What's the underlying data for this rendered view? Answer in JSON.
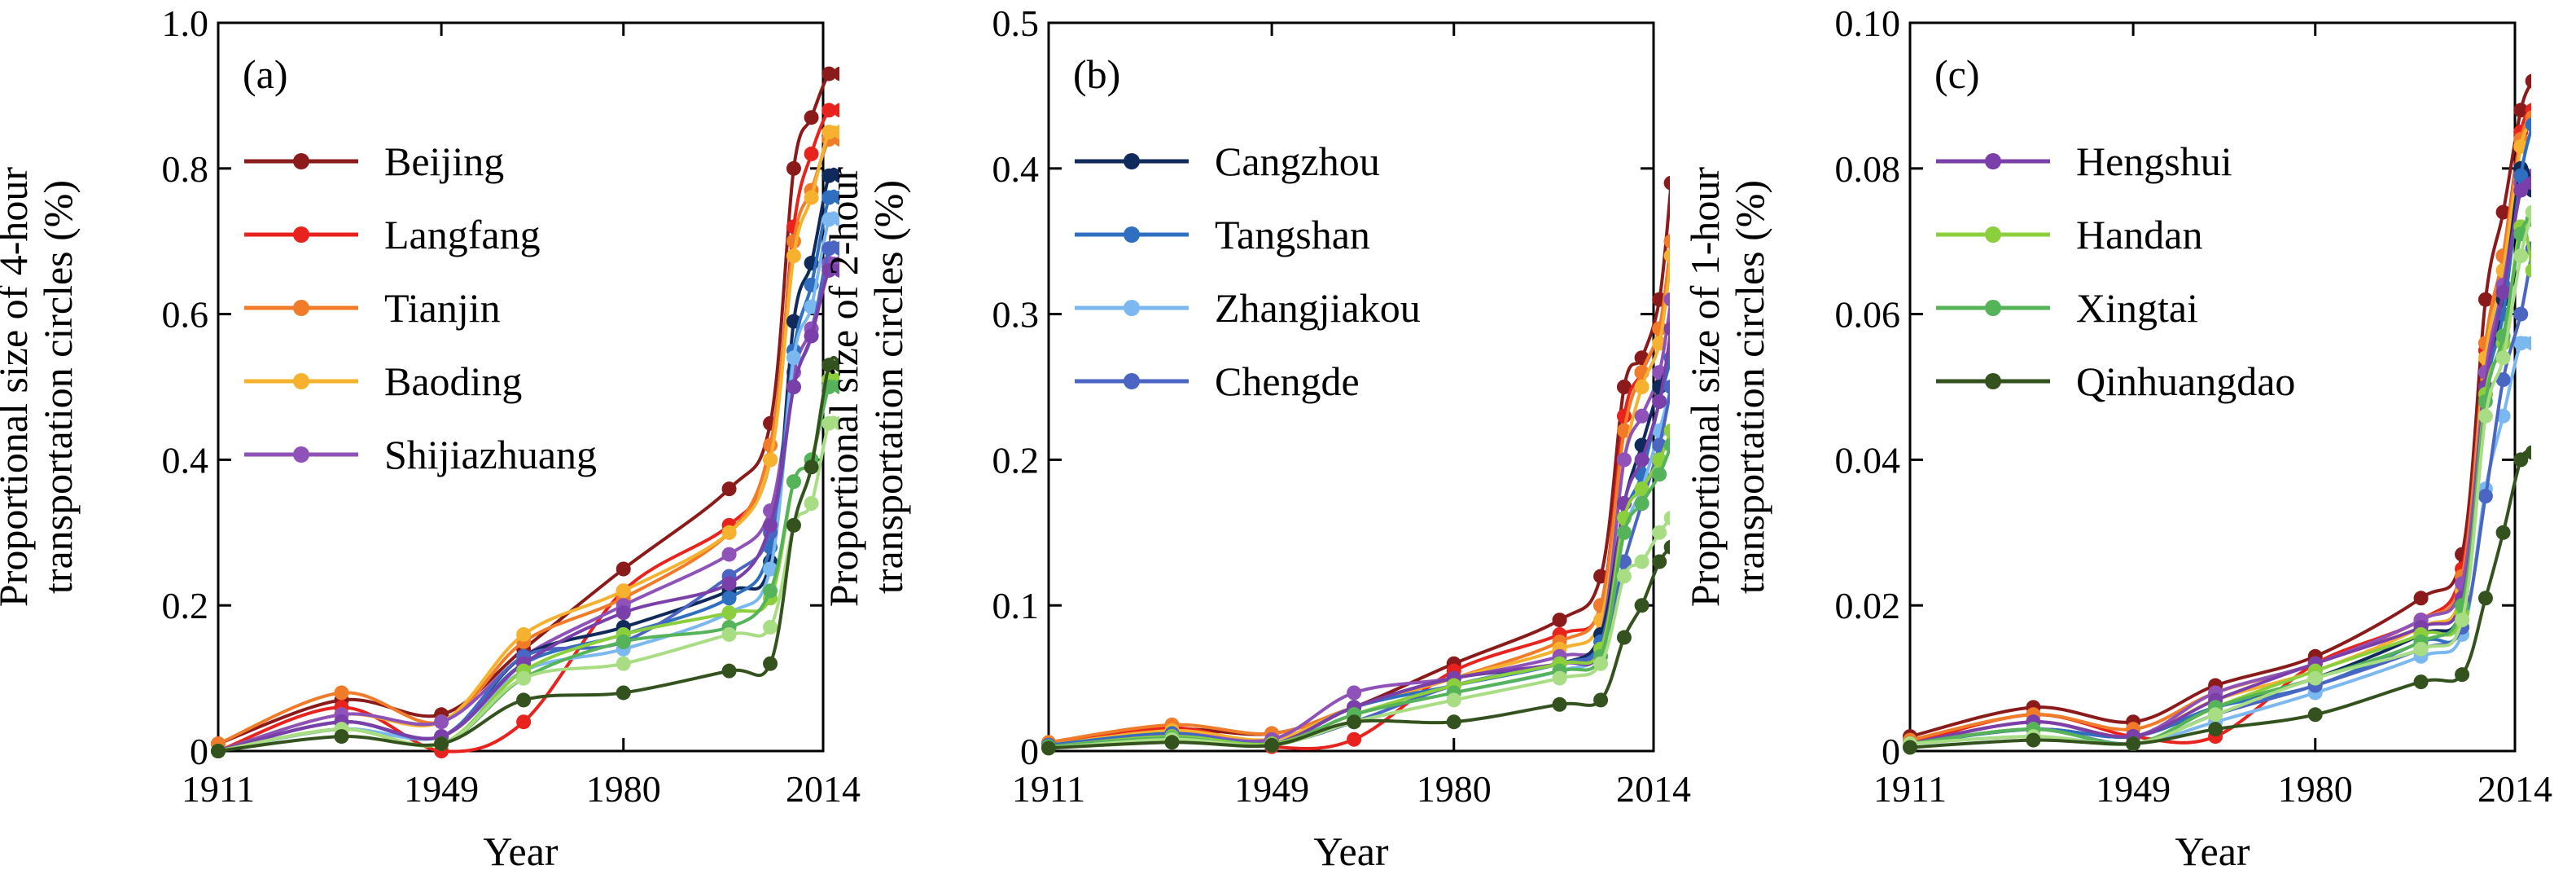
{
  "chart_data": [
    {
      "type": "line",
      "panel_label": "(a)",
      "xlabel": "Year",
      "ylabel_lines": [
        "Proportional size of 4-hour",
        "transportation circles (%)"
      ],
      "xticks": [
        1911,
        1949,
        1980,
        2014
      ],
      "ylim": [
        0,
        1.0
      ],
      "yticks": [
        0,
        0.2,
        0.4,
        0.6,
        0.8,
        1.0
      ],
      "ytick_labels": [
        "0",
        "0.2",
        "0.4",
        "0.6",
        "0.8",
        "1.0"
      ],
      "x": [
        1911,
        1932,
        1949,
        1963,
        1980,
        1998,
        2005,
        2009,
        2012,
        2015,
        2017
      ],
      "legend": [
        "Beijing",
        "Langfang",
        "Tianjin",
        "Baoding",
        "Shijiazhuang"
      ],
      "series": [
        {
          "name": "Beijing",
          "color": "#8b1a1a",
          "values": [
            0.01,
            0.07,
            0.05,
            0.14,
            0.25,
            0.36,
            0.45,
            0.8,
            0.87,
            0.93,
            0.93
          ]
        },
        {
          "name": "Langfang",
          "color": "#e8231d",
          "values": [
            0.0,
            0.06,
            0.0,
            0.04,
            0.22,
            0.31,
            0.4,
            0.72,
            0.82,
            0.88,
            0.88
          ]
        },
        {
          "name": "Tianjin",
          "color": "#f07c2a",
          "values": [
            0.01,
            0.08,
            0.04,
            0.15,
            0.21,
            0.3,
            0.42,
            0.7,
            0.77,
            0.84,
            0.84
          ]
        },
        {
          "name": "Baoding",
          "color": "#f6b22e",
          "values": [
            0.0,
            0.05,
            0.04,
            0.16,
            0.22,
            0.3,
            0.4,
            0.68,
            0.76,
            0.85,
            0.85
          ]
        },
        {
          "name": "Shijiazhuang",
          "color": "#8e52b8",
          "values": [
            0.0,
            0.05,
            0.04,
            0.13,
            0.2,
            0.27,
            0.33,
            0.52,
            0.58,
            0.67,
            0.67
          ]
        },
        {
          "name": "",
          "color": "#102a5c",
          "values": [
            0.0,
            0.04,
            0.02,
            0.13,
            0.17,
            0.22,
            0.26,
            0.59,
            0.67,
            0.79,
            0.79
          ]
        },
        {
          "name": "",
          "color": "#2f6fc0",
          "values": [
            0.0,
            0.04,
            0.02,
            0.12,
            0.16,
            0.21,
            0.28,
            0.55,
            0.64,
            0.76,
            0.76
          ]
        },
        {
          "name": "",
          "color": "#7ab8ef",
          "values": [
            0.0,
            0.03,
            0.02,
            0.11,
            0.14,
            0.19,
            0.25,
            0.54,
            0.61,
            0.73,
            0.73
          ]
        },
        {
          "name": "",
          "color": "#4a66c2",
          "values": [
            0.0,
            0.04,
            0.02,
            0.13,
            0.15,
            0.24,
            0.3,
            0.5,
            0.57,
            0.69,
            0.69
          ]
        },
        {
          "name": "",
          "color": "#7a3fa8",
          "values": [
            0.0,
            0.04,
            0.02,
            0.12,
            0.19,
            0.23,
            0.31,
            0.5,
            0.57,
            0.66,
            0.66
          ]
        },
        {
          "name": "",
          "color": "#8ccf3c",
          "values": [
            0.0,
            0.03,
            0.01,
            0.11,
            0.16,
            0.19,
            0.21,
            0.37,
            0.4,
            0.51,
            0.51
          ]
        },
        {
          "name": "",
          "color": "#55b35a",
          "values": [
            0.0,
            0.03,
            0.01,
            0.1,
            0.15,
            0.17,
            0.22,
            0.37,
            0.4,
            0.5,
            0.5
          ]
        },
        {
          "name": "",
          "color": "#a9dd84",
          "values": [
            0.0,
            0.03,
            0.01,
            0.1,
            0.12,
            0.16,
            0.17,
            0.31,
            0.34,
            0.45,
            0.45
          ]
        },
        {
          "name": "",
          "color": "#33521e",
          "values": [
            0.0,
            0.02,
            0.01,
            0.07,
            0.08,
            0.11,
            0.12,
            0.31,
            0.39,
            0.53,
            0.53
          ]
        }
      ]
    },
    {
      "type": "line",
      "panel_label": "(b)",
      "xlabel": "Year",
      "ylabel_lines": [
        "Proportional size of 2-hour",
        "transportation circles (%)"
      ],
      "xticks": [
        1911,
        1949,
        1980,
        2014
      ],
      "ylim": [
        0,
        0.5
      ],
      "yticks": [
        0,
        0.1,
        0.2,
        0.3,
        0.4,
        0.5
      ],
      "ytick_labels": [
        "0",
        "0.1",
        "0.2",
        "0.3",
        "0.4",
        "0.5"
      ],
      "x": [
        1911,
        1932,
        1949,
        1963,
        1980,
        1998,
        2005,
        2009,
        2012,
        2015,
        2017
      ],
      "legend": [
        "Cangzhou",
        "Tangshan",
        "Zhangjiakou",
        "Chengde"
      ],
      "series": [
        {
          "name": "",
          "color": "#8b1a1a",
          "values": [
            0.005,
            0.015,
            0.012,
            0.03,
            0.06,
            0.09,
            0.12,
            0.25,
            0.27,
            0.31,
            0.39
          ]
        },
        {
          "name": "",
          "color": "#e8231d",
          "values": [
            0.004,
            0.016,
            0.003,
            0.008,
            0.055,
            0.08,
            0.1,
            0.23,
            0.26,
            0.29,
            0.35
          ]
        },
        {
          "name": "",
          "color": "#f07c2a",
          "values": [
            0.006,
            0.018,
            0.012,
            0.03,
            0.05,
            0.075,
            0.1,
            0.22,
            0.26,
            0.29,
            0.35
          ]
        },
        {
          "name": "",
          "color": "#f6b22e",
          "values": [
            0.004,
            0.014,
            0.008,
            0.03,
            0.05,
            0.07,
            0.09,
            0.2,
            0.25,
            0.28,
            0.34
          ]
        },
        {
          "name": "",
          "color": "#8e52b8",
          "values": [
            0.004,
            0.012,
            0.008,
            0.04,
            0.05,
            0.065,
            0.08,
            0.2,
            0.23,
            0.26,
            0.31
          ]
        },
        {
          "name": "Cangzhou",
          "color": "#102a5c",
          "values": [
            0.004,
            0.01,
            0.005,
            0.03,
            0.05,
            0.06,
            0.08,
            0.17,
            0.21,
            0.25,
            0.27
          ]
        },
        {
          "name": "Tangshan",
          "color": "#2f6fc0",
          "values": [
            0.004,
            0.012,
            0.005,
            0.03,
            0.045,
            0.06,
            0.075,
            0.16,
            0.19,
            0.24,
            0.27
          ]
        },
        {
          "name": "Zhangjiakou",
          "color": "#7ab8ef",
          "values": [
            0.003,
            0.01,
            0.004,
            0.025,
            0.04,
            0.055,
            0.07,
            0.15,
            0.18,
            0.22,
            0.25
          ]
        },
        {
          "name": "Chengde",
          "color": "#4a66c2",
          "values": [
            0.003,
            0.011,
            0.005,
            0.02,
            0.045,
            0.06,
            0.07,
            0.13,
            0.17,
            0.21,
            0.25
          ]
        },
        {
          "name": "",
          "color": "#7a3fa8",
          "values": [
            0.003,
            0.01,
            0.005,
            0.03,
            0.05,
            0.06,
            0.07,
            0.17,
            0.2,
            0.24,
            0.29
          ]
        },
        {
          "name": "",
          "color": "#8ccf3c",
          "values": [
            0.003,
            0.01,
            0.005,
            0.025,
            0.045,
            0.06,
            0.07,
            0.16,
            0.18,
            0.2,
            0.22
          ]
        },
        {
          "name": "",
          "color": "#55b35a",
          "values": [
            0.003,
            0.009,
            0.004,
            0.025,
            0.04,
            0.055,
            0.065,
            0.15,
            0.17,
            0.19,
            0.21
          ]
        },
        {
          "name": "",
          "color": "#a9dd84",
          "values": [
            0.002,
            0.008,
            0.004,
            0.02,
            0.035,
            0.05,
            0.06,
            0.12,
            0.13,
            0.15,
            0.16
          ]
        },
        {
          "name": "",
          "color": "#33521e",
          "values": [
            0.002,
            0.006,
            0.004,
            0.02,
            0.02,
            0.032,
            0.035,
            0.078,
            0.1,
            0.13,
            0.14
          ]
        }
      ]
    },
    {
      "type": "line",
      "panel_label": "(c)",
      "xlabel": "Year",
      "ylabel_lines": [
        "Proportional size of 1-hour",
        "transportation circles (%)"
      ],
      "xticks": [
        1911,
        1949,
        1980,
        2014
      ],
      "ylim": [
        0,
        0.1
      ],
      "yticks": [
        0,
        0.02,
        0.04,
        0.06,
        0.08,
        0.1
      ],
      "ytick_labels": [
        "0",
        "0.02",
        "0.04",
        "0.06",
        "0.08",
        "0.10"
      ],
      "x": [
        1911,
        1932,
        1949,
        1963,
        1980,
        1998,
        2005,
        2009,
        2012,
        2015,
        2017
      ],
      "legend": [
        "Hengshui",
        "Handan",
        "Xingtai",
        "Qinhuangdao"
      ],
      "series": [
        {
          "name": "",
          "color": "#8b1a1a",
          "values": [
            0.002,
            0.006,
            0.004,
            0.009,
            0.013,
            0.021,
            0.027,
            0.062,
            0.074,
            0.088,
            0.092
          ]
        },
        {
          "name": "",
          "color": "#e8231d",
          "values": [
            0.001,
            0.005,
            0.002,
            0.002,
            0.012,
            0.018,
            0.025,
            0.055,
            0.068,
            0.085,
            0.088
          ]
        },
        {
          "name": "",
          "color": "#f07c2a",
          "values": [
            0.0015,
            0.005,
            0.003,
            0.008,
            0.012,
            0.018,
            0.024,
            0.056,
            0.068,
            0.084,
            0.087
          ]
        },
        {
          "name": "",
          "color": "#f6b22e",
          "values": [
            0.001,
            0.004,
            0.002,
            0.007,
            0.011,
            0.017,
            0.022,
            0.054,
            0.066,
            0.083,
            0.086
          ]
        },
        {
          "name": "",
          "color": "#8e52b8",
          "values": [
            0.001,
            0.004,
            0.002,
            0.008,
            0.012,
            0.018,
            0.023,
            0.052,
            0.064,
            0.078,
            0.079
          ]
        },
        {
          "name": "",
          "color": "#102a5c",
          "values": [
            0.001,
            0.003,
            0.002,
            0.006,
            0.01,
            0.016,
            0.02,
            0.05,
            0.062,
            0.08,
            0.077
          ]
        },
        {
          "name": "",
          "color": "#2f6fc0",
          "values": [
            0.001,
            0.003,
            0.002,
            0.006,
            0.009,
            0.015,
            0.018,
            0.049,
            0.06,
            0.079,
            0.086
          ]
        },
        {
          "name": "",
          "color": "#7ab8ef",
          "values": [
            0.001,
            0.002,
            0.001,
            0.004,
            0.008,
            0.013,
            0.016,
            0.036,
            0.046,
            0.056,
            0.056
          ]
        },
        {
          "name": "",
          "color": "#4a66c2",
          "values": [
            0.001,
            0.003,
            0.001,
            0.005,
            0.009,
            0.014,
            0.017,
            0.035,
            0.051,
            0.06,
            0.069
          ]
        },
        {
          "name": "Hengshui",
          "color": "#7a3fa8",
          "values": [
            0.001,
            0.004,
            0.002,
            0.007,
            0.012,
            0.017,
            0.021,
            0.05,
            0.063,
            0.077,
            0.078
          ]
        },
        {
          "name": "Handan",
          "color": "#8ccf3c",
          "values": [
            0.001,
            0.003,
            0.001,
            0.006,
            0.011,
            0.016,
            0.019,
            0.049,
            0.056,
            0.072,
            0.066
          ]
        },
        {
          "name": "Xingtai",
          "color": "#55b35a",
          "values": [
            0.001,
            0.003,
            0.001,
            0.006,
            0.01,
            0.015,
            0.02,
            0.048,
            0.057,
            0.071,
            0.073
          ]
        },
        {
          "name": "",
          "color": "#a9dd84",
          "values": [
            0.001,
            0.002,
            0.001,
            0.005,
            0.01,
            0.014,
            0.018,
            0.046,
            0.054,
            0.068,
            0.074
          ]
        },
        {
          "name": "Qinhuangdao",
          "color": "#33521e",
          "values": [
            0.0005,
            0.0015,
            0.001,
            0.003,
            0.005,
            0.0095,
            0.0105,
            0.021,
            0.03,
            0.04,
            0.041
          ]
        }
      ]
    }
  ]
}
